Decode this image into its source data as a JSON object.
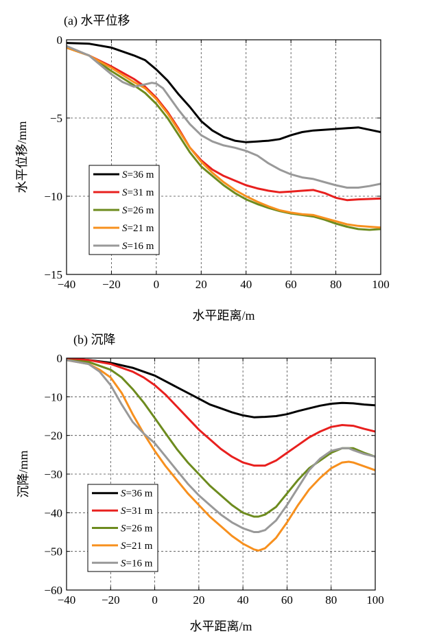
{
  "chart_data": [
    {
      "type": "line",
      "title": "(a) 水平位移",
      "xlabel": "水平距离/m",
      "ylabel": "水平位移/mm",
      "xlim": [
        -40,
        100
      ],
      "ylim": [
        -15,
        0
      ],
      "xticks": [
        -40,
        -20,
        0,
        20,
        40,
        60,
        80,
        100
      ],
      "yticks": [
        0,
        -5,
        -10,
        -15
      ],
      "xtick_labels": [
        "−40",
        "−20",
        "0",
        "20",
        "40",
        "60",
        "80",
        "100"
      ],
      "ytick_labels": [
        "0",
        "−5",
        "−10",
        "−15"
      ],
      "grid": true,
      "legend_position": "bottom-left",
      "series": [
        {
          "name": "S=36 m",
          "legend_italic": "S",
          "legend_rest": "=36 m",
          "color": "#000000",
          "x": [
            -40,
            -30,
            -20,
            -10,
            -5,
            0,
            5,
            10,
            15,
            20,
            25,
            30,
            35,
            40,
            45,
            50,
            55,
            60,
            65,
            70,
            80,
            90,
            100
          ],
          "y": [
            -0.2,
            -0.25,
            -0.5,
            -1.0,
            -1.3,
            -1.9,
            -2.6,
            -3.5,
            -4.3,
            -5.2,
            -5.8,
            -6.2,
            -6.45,
            -6.55,
            -6.5,
            -6.45,
            -6.35,
            -6.1,
            -5.9,
            -5.8,
            -5.7,
            -5.6,
            -5.9
          ]
        },
        {
          "name": "S=31 m",
          "legend_italic": "S",
          "legend_rest": "=31 m",
          "color": "#e8201e",
          "x": [
            -40,
            -30,
            -20,
            -10,
            -5,
            0,
            5,
            10,
            15,
            20,
            25,
            30,
            35,
            40,
            45,
            50,
            55,
            60,
            65,
            70,
            75,
            80,
            85,
            90,
            100
          ],
          "y": [
            -0.5,
            -1.0,
            -1.7,
            -2.5,
            -3.0,
            -3.7,
            -4.6,
            -5.7,
            -6.9,
            -7.7,
            -8.3,
            -8.7,
            -9.0,
            -9.3,
            -9.5,
            -9.65,
            -9.75,
            -9.7,
            -9.65,
            -9.6,
            -9.8,
            -10.1,
            -10.25,
            -10.2,
            -10.15
          ]
        },
        {
          "name": "S=26 m",
          "legend_italic": "S",
          "legend_rest": "=26 m",
          "color": "#6d8b1e",
          "x": [
            -40,
            -30,
            -20,
            -10,
            -5,
            0,
            5,
            10,
            15,
            20,
            25,
            30,
            35,
            40,
            45,
            50,
            55,
            60,
            65,
            70,
            75,
            80,
            85,
            90,
            95,
            100
          ],
          "y": [
            -0.5,
            -1.0,
            -2.0,
            -2.9,
            -3.4,
            -4.1,
            -5.0,
            -6.1,
            -7.2,
            -8.1,
            -8.7,
            -9.3,
            -9.8,
            -10.2,
            -10.5,
            -10.75,
            -10.95,
            -11.1,
            -11.2,
            -11.3,
            -11.5,
            -11.75,
            -11.95,
            -12.1,
            -12.15,
            -12.1
          ]
        },
        {
          "name": "S=21 m",
          "legend_italic": "S",
          "legend_rest": "=21 m",
          "color": "#f7901e",
          "x": [
            -40,
            -30,
            -20,
            -10,
            -5,
            0,
            5,
            10,
            15,
            20,
            25,
            30,
            35,
            40,
            45,
            50,
            55,
            60,
            65,
            70,
            75,
            80,
            85,
            90,
            95,
            100
          ],
          "y": [
            -0.5,
            -1.0,
            -1.8,
            -2.7,
            -3.1,
            -3.8,
            -4.7,
            -5.8,
            -6.9,
            -7.8,
            -8.5,
            -9.1,
            -9.6,
            -10.0,
            -10.35,
            -10.65,
            -10.9,
            -11.05,
            -11.15,
            -11.2,
            -11.4,
            -11.6,
            -11.8,
            -11.9,
            -11.95,
            -12.0
          ]
        },
        {
          "name": "S=16 m",
          "legend_italic": "S",
          "legend_rest": "=16 m",
          "color": "#999999",
          "x": [
            -40,
            -30,
            -20,
            -15,
            -10,
            -5,
            -2,
            0,
            3,
            5,
            10,
            15,
            20,
            25,
            30,
            35,
            40,
            45,
            50,
            55,
            60,
            65,
            70,
            75,
            80,
            85,
            90,
            95,
            100
          ],
          "y": [
            -0.4,
            -1.0,
            -2.2,
            -2.7,
            -3.0,
            -2.85,
            -2.75,
            -2.8,
            -3.1,
            -3.5,
            -4.5,
            -5.4,
            -6.1,
            -6.5,
            -6.75,
            -6.9,
            -7.1,
            -7.4,
            -7.9,
            -8.3,
            -8.6,
            -8.8,
            -8.9,
            -9.1,
            -9.3,
            -9.45,
            -9.45,
            -9.35,
            -9.2
          ]
        }
      ]
    },
    {
      "type": "line",
      "title": "(b) 沉降",
      "xlabel": "水平距离/m",
      "ylabel": "沉降/mm",
      "xlim": [
        -40,
        100
      ],
      "ylim": [
        -60,
        0
      ],
      "xticks": [
        -40,
        -20,
        0,
        20,
        40,
        60,
        80,
        100
      ],
      "yticks": [
        0,
        -10,
        -20,
        -30,
        -40,
        -50,
        -60
      ],
      "xtick_labels": [
        "−40",
        "−20",
        "0",
        "20",
        "40",
        "60",
        "80",
        "100"
      ],
      "ytick_labels": [
        "0",
        "−10",
        "−20",
        "−30",
        "−40",
        "−50",
        "−60"
      ],
      "grid": true,
      "legend_position": "bottom-left",
      "series": [
        {
          "name": "S=36 m",
          "legend_italic": "S",
          "legend_rest": "=36 m",
          "color": "#000000",
          "x": [
            -40,
            -30,
            -20,
            -10,
            0,
            5,
            10,
            15,
            20,
            25,
            30,
            35,
            40,
            45,
            50,
            55,
            60,
            65,
            70,
            75,
            80,
            85,
            90,
            95,
            100
          ],
          "y": [
            0,
            -0.5,
            -1.2,
            -2.5,
            -4.5,
            -6.0,
            -7.5,
            -9.0,
            -10.5,
            -12.0,
            -13.0,
            -14.0,
            -14.8,
            -15.3,
            -15.2,
            -15.0,
            -14.5,
            -13.7,
            -13.0,
            -12.3,
            -11.8,
            -11.6,
            -11.7,
            -12.0,
            -12.2
          ]
        },
        {
          "name": "S=31 m",
          "legend_italic": "S",
          "legend_rest": "=31 m",
          "color": "#e8201e",
          "x": [
            -40,
            -30,
            -20,
            -10,
            -5,
            0,
            5,
            10,
            15,
            20,
            25,
            30,
            35,
            40,
            45,
            50,
            55,
            60,
            65,
            70,
            75,
            80,
            85,
            90,
            95,
            100
          ],
          "y": [
            0,
            -0.5,
            -1.5,
            -3.5,
            -5.0,
            -7.0,
            -9.5,
            -12.5,
            -15.5,
            -18.5,
            -21.0,
            -23.5,
            -25.5,
            -27.0,
            -27.8,
            -27.8,
            -26.5,
            -24.5,
            -22.5,
            -20.5,
            -19.0,
            -17.8,
            -17.3,
            -17.5,
            -18.3,
            -19.0
          ]
        },
        {
          "name": "S=26 m",
          "legend_italic": "S",
          "legend_rest": "=26 m",
          "color": "#6d8b1e",
          "x": [
            -40,
            -30,
            -20,
            -15,
            -10,
            -5,
            0,
            5,
            10,
            15,
            20,
            25,
            30,
            35,
            40,
            45,
            47,
            50,
            55,
            60,
            65,
            70,
            75,
            80,
            85,
            90,
            95,
            100
          ],
          "y": [
            -0.5,
            -1.0,
            -3.0,
            -5.0,
            -8.0,
            -11.5,
            -15.5,
            -19.5,
            -23.5,
            -27.0,
            -30.0,
            -33.0,
            -35.5,
            -38.0,
            -40.0,
            -41.0,
            -41.0,
            -40.5,
            -38.5,
            -35.0,
            -31.5,
            -28.5,
            -26.5,
            -24.5,
            -23.3,
            -23.3,
            -24.5,
            -25.5
          ]
        },
        {
          "name": "S=21 m",
          "legend_italic": "S",
          "legend_rest": "=21 m",
          "color": "#f7901e",
          "x": [
            -40,
            -30,
            -25,
            -20,
            -15,
            -10,
            -5,
            0,
            5,
            10,
            15,
            20,
            25,
            30,
            35,
            40,
            45,
            47,
            50,
            55,
            60,
            65,
            70,
            75,
            80,
            85,
            88,
            90,
            95,
            100
          ],
          "y": [
            -0.5,
            -1.5,
            -3.0,
            -5.0,
            -9.0,
            -14.5,
            -19.5,
            -24.0,
            -28.0,
            -31.5,
            -35.0,
            -38.0,
            -41.0,
            -43.5,
            -46.0,
            -48.0,
            -49.5,
            -49.8,
            -49.2,
            -46.5,
            -42.5,
            -38.0,
            -34.0,
            -31.0,
            -28.5,
            -27.0,
            -26.8,
            -27.0,
            -28.0,
            -29.0
          ]
        },
        {
          "name": "S=16 m",
          "legend_italic": "S",
          "legend_rest": "=16 m",
          "color": "#999999",
          "x": [
            -40,
            -30,
            -25,
            -20,
            -15,
            -10,
            -5,
            0,
            5,
            10,
            15,
            20,
            25,
            30,
            35,
            40,
            45,
            47,
            50,
            55,
            60,
            65,
            70,
            75,
            80,
            85,
            88,
            90,
            95,
            100
          ],
          "y": [
            -0.5,
            -1.5,
            -3.5,
            -7.0,
            -12.0,
            -16.5,
            -19.5,
            -22.0,
            -25.5,
            -29.0,
            -32.5,
            -35.5,
            -38.0,
            -40.5,
            -42.5,
            -44.0,
            -45.0,
            -45.0,
            -44.5,
            -42.0,
            -38.0,
            -33.5,
            -29.0,
            -26.0,
            -24.0,
            -23.3,
            -23.3,
            -23.8,
            -24.8,
            -25.5
          ]
        }
      ]
    }
  ]
}
